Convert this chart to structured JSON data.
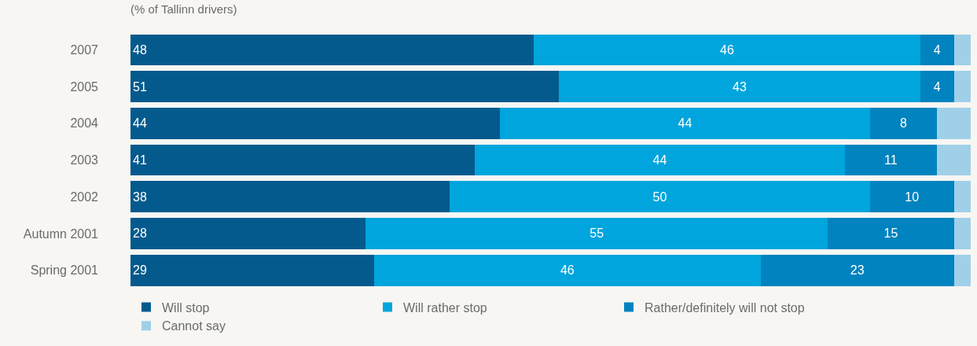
{
  "chart_data": {
    "type": "bar",
    "orientation": "horizontal",
    "stacked": true,
    "title": "(% of Tallinn drivers)",
    "categories": [
      "2007",
      "2005",
      "2004",
      "2003",
      "2002",
      "Autumn 2001",
      "Spring 2001"
    ],
    "series": [
      {
        "name": "Will stop",
        "color": "#045a8d",
        "values": [
          48,
          51,
          44,
          41,
          38,
          28,
          29
        ],
        "value_labels": [
          "48",
          "51",
          "44",
          "41",
          "38",
          "28",
          "29"
        ]
      },
      {
        "name": "Will rather stop",
        "color": "#00a5dd",
        "values": [
          46,
          43,
          44,
          44,
          50,
          55,
          46
        ],
        "value_labels": [
          "46",
          "43",
          "44",
          "44",
          "50",
          "55",
          "46"
        ]
      },
      {
        "name": "Rather/definitely will not stop",
        "color": "#0083be",
        "values": [
          4,
          4,
          8,
          11,
          10,
          15,
          23
        ],
        "value_labels": [
          "4",
          "4",
          "8",
          "11",
          "10",
          "15",
          "23"
        ]
      },
      {
        "name": "Cannot say",
        "color": "#a0d0e8",
        "values": [
          2,
          2,
          4,
          4,
          2,
          2,
          2
        ]
      }
    ],
    "legend": "bottom"
  }
}
